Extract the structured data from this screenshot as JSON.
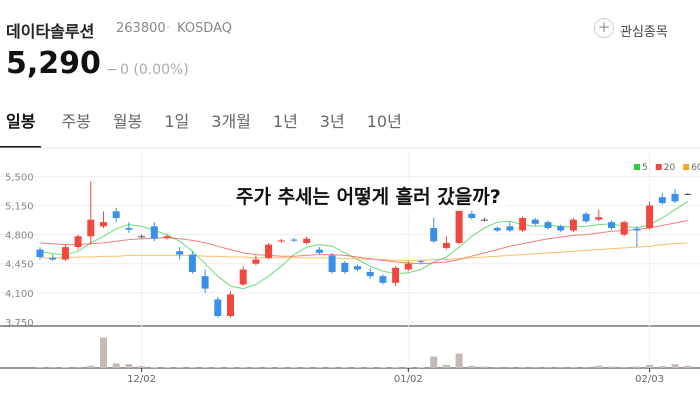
{
  "header": {
    "title": "데이타솔루션",
    "code": "263800",
    "market": "KOSDAQ",
    "price": "5,290",
    "change_sign": "−",
    "change": "0 (0.00%)",
    "watch": "관심종목"
  },
  "tabs": [
    "일봉",
    "주봉",
    "월봉",
    "1일",
    "3개월",
    "1년",
    "3년",
    "10년"
  ],
  "chart_data": {
    "type": "candlestick",
    "annotation": "주가 추세는 어떻게 흘러 갔을까?",
    "categories": [
      null,
      null,
      null,
      null,
      null,
      null,
      null,
      null,
      "12/02",
      null,
      null,
      null,
      null,
      null,
      null,
      null,
      null,
      null,
      null,
      null,
      null,
      null,
      null,
      null,
      null,
      null,
      null,
      null,
      null,
      "01/02",
      null,
      null,
      null,
      null,
      null,
      null,
      null,
      null,
      null,
      null,
      null,
      null,
      null,
      null,
      null,
      null,
      null,
      null,
      "02/03",
      null,
      null,
      null
    ],
    "open": [
      4620,
      4520,
      4500,
      4650,
      4780,
      4900,
      5080,
      4880,
      4780,
      4900,
      4760,
      4600,
      4560,
      4300,
      4020,
      3820,
      4200,
      4450,
      4520,
      4720,
      4740,
      4700,
      4620,
      4550,
      4460,
      4420,
      4350,
      4300,
      4220,
      4380,
      4480,
      4880,
      4640,
      4700,
      5050,
      4980,
      4880,
      4900,
      4850,
      4980,
      4950,
      4900,
      4850,
      5050,
      4980,
      4950,
      4800,
      4870,
      4880,
      5250,
      5290,
      5290
    ],
    "high": [
      4650,
      4560,
      4680,
      4800,
      5440,
      5080,
      5120,
      4950,
      4800,
      4950,
      4800,
      4650,
      4600,
      4380,
      4050,
      4120,
      4420,
      4550,
      4700,
      4750,
      4760,
      4780,
      4650,
      4580,
      4480,
      4440,
      4400,
      4320,
      4420,
      4480,
      4500,
      5000,
      4780,
      5200,
      5100,
      5000,
      4900,
      4950,
      5020,
      5000,
      4970,
      4920,
      5000,
      5070,
      5100,
      4970,
      4970,
      4900,
      5200,
      5300,
      5350,
      5300
    ],
    "low": [
      4500,
      4480,
      4480,
      4620,
      4680,
      4880,
      4950,
      4820,
      4760,
      4720,
      4740,
      4500,
      4330,
      4100,
      3800,
      3800,
      4180,
      4430,
      4500,
      4700,
      4710,
      4680,
      4560,
      4330,
      4330,
      4360,
      4270,
      4200,
      4180,
      4360,
      4450,
      4700,
      4620,
      4680,
      4980,
      4960,
      4830,
      4830,
      4830,
      4910,
      4860,
      4830,
      4830,
      4940,
      4960,
      4860,
      4780,
      4650,
      4860,
      5160,
      5180,
      5280
    ],
    "close": [
      4530,
      4500,
      4650,
      4780,
      4980,
      4950,
      5000,
      4860,
      4780,
      4750,
      4780,
      4560,
      4350,
      4150,
      3820,
      4080,
      4380,
      4500,
      4680,
      4730,
      4730,
      4750,
      4580,
      4350,
      4350,
      4380,
      4300,
      4220,
      4400,
      4450,
      4470,
      4720,
      4700,
      5100,
      5000,
      4980,
      4850,
      4850,
      5000,
      4930,
      4880,
      4850,
      4980,
      4960,
      5010,
      4880,
      4950,
      4850,
      5150,
      5180,
      5200,
      5290
    ],
    "up_color": "#f0483e",
    "down_color": "#3a8fe8",
    "flat_color": "#555555",
    "series": [
      {
        "name": "5",
        "color": "#2ecc40",
        "values": [
          4600,
          4570,
          4560,
          4600,
          4700,
          4780,
          4870,
          4920,
          4900,
          4850,
          4800,
          4720,
          4600,
          4450,
          4300,
          4180,
          4150,
          4200,
          4300,
          4420,
          4560,
          4650,
          4680,
          4660,
          4580,
          4500,
          4420,
          4360,
          4330,
          4340,
          4380,
          4470,
          4530,
          4650,
          4780,
          4880,
          4950,
          4960,
          4920,
          4900,
          4910,
          4900,
          4890,
          4900,
          4920,
          4930,
          4900,
          4880,
          4920,
          5000,
          5100,
          5200
        ]
      },
      {
        "name": "20",
        "color": "#f0483e",
        "values": [
          4700,
          4690,
          4680,
          4680,
          4690,
          4700,
          4720,
          4740,
          4750,
          4760,
          4760,
          4750,
          4730,
          4700,
          4660,
          4620,
          4580,
          4560,
          4550,
          4540,
          4540,
          4550,
          4560,
          4560,
          4550,
          4530,
          4510,
          4490,
          4470,
          4460,
          4450,
          4460,
          4470,
          4500,
          4540,
          4580,
          4620,
          4660,
          4690,
          4720,
          4750,
          4770,
          4790,
          4800,
          4820,
          4840,
          4850,
          4860,
          4880,
          4910,
          4940,
          4970
        ]
      },
      {
        "name": "60",
        "color": "#f5a623",
        "values": [
          4520,
          4520,
          4520,
          4530,
          4530,
          4540,
          4540,
          4550,
          4550,
          4550,
          4550,
          4550,
          4550,
          4540,
          4540,
          4530,
          4530,
          4520,
          4520,
          4520,
          4520,
          4520,
          4520,
          4520,
          4510,
          4510,
          4500,
          4500,
          4490,
          4490,
          4490,
          4500,
          4500,
          4510,
          4520,
          4530,
          4540,
          4550,
          4560,
          4570,
          4580,
          4590,
          4600,
          4610,
          4620,
          4630,
          4640,
          4650,
          4660,
          4680,
          4690,
          4700
        ]
      }
    ],
    "volume": {
      "color": "#c4b9b5",
      "ylim": [
        0,
        100
      ],
      "values": [
        2,
        3,
        2,
        3,
        6,
        80,
        12,
        10,
        5,
        2,
        2,
        2,
        2,
        2,
        2,
        2,
        2,
        2,
        2,
        2,
        2,
        2,
        2,
        2,
        2,
        2,
        2,
        2,
        2,
        2,
        2,
        30,
        8,
        38,
        6,
        4,
        3,
        3,
        3,
        3,
        3,
        3,
        3,
        3,
        6,
        4,
        3,
        4,
        8,
        5,
        10,
        6
      ]
    },
    "ylim": [
      3700,
      5650
    ],
    "yticks": [
      {
        "value": 3750,
        "label": "3,750"
      },
      {
        "value": 4100,
        "label": "4,100"
      },
      {
        "value": 4450,
        "label": "4,450"
      },
      {
        "value": 4800,
        "label": "4,800"
      },
      {
        "value": 5150,
        "label": "5,150"
      },
      {
        "value": 5500,
        "label": "5,500"
      }
    ],
    "grid": true
  }
}
